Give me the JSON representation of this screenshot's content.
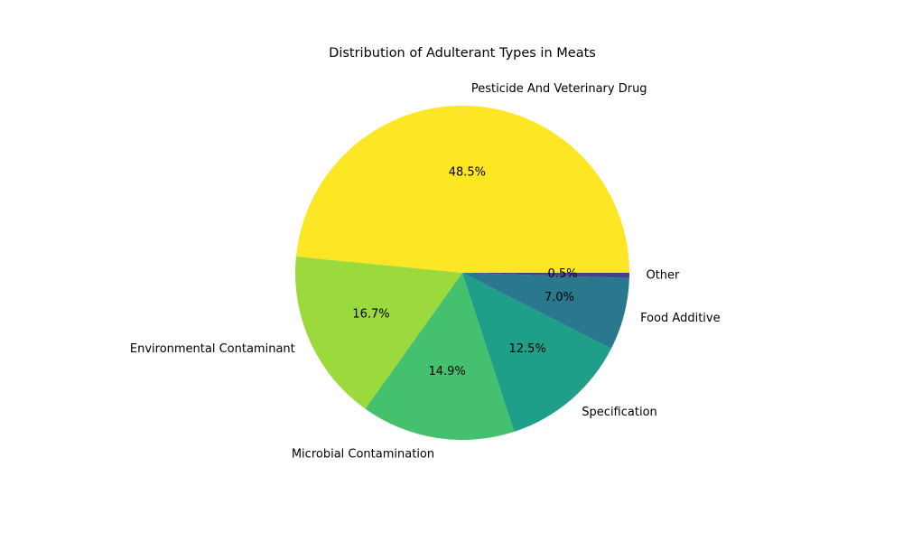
{
  "chart_data": {
    "type": "pie",
    "title": "Distribution of Adulterant Types in Meats",
    "start_angle_deg": 0,
    "direction": "counterclockwise",
    "legend": "none",
    "slices": [
      {
        "label": "Pesticide And Veterinary Drug",
        "value": 48.5,
        "pct_text": "48.5%",
        "color": "#fde725"
      },
      {
        "label": "Environmental Contaminant",
        "value": 16.7,
        "pct_text": "16.7%",
        "color": "#9bd93c"
      },
      {
        "label": "Microbial Contamination",
        "value": 14.9,
        "pct_text": "14.9%",
        "color": "#45c06f"
      },
      {
        "label": "Specification",
        "value": 12.5,
        "pct_text": "12.5%",
        "color": "#1f9e89"
      },
      {
        "label": "Food Additive",
        "value": 7.0,
        "pct_text": "7.0%",
        "color": "#2a788e"
      },
      {
        "label": "Other",
        "value": 0.5,
        "pct_text": "0.5%",
        "color": "#414487"
      }
    ]
  }
}
